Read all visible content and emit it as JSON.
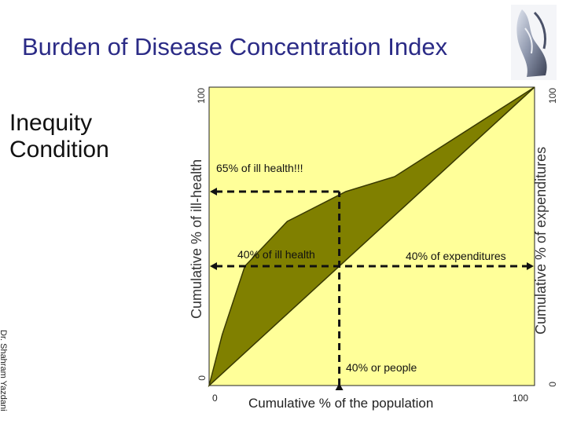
{
  "title": "Burden of Disease Concentration Index",
  "side_heading": [
    "Inequity",
    "Condition"
  ],
  "author": "Dr. Shahram Yazdani",
  "chart": {
    "y_left_label": "Cumulative % of  ill-health",
    "y_right_label": "Cumulative % of  expenditures",
    "x_label": "Cumulative % of  the population",
    "y_left_ticks": [
      "100",
      "0"
    ],
    "y_right_ticks": [
      "100",
      "0"
    ],
    "x_ticks": [
      "0",
      "100"
    ]
  },
  "annotations": {
    "ill_65": "65% of ill health!!!",
    "ill_40": "40% of ill health",
    "exp_40": "40% of expenditures",
    "people_40": "40% or people"
  },
  "colors": {
    "title": "#2b2b86",
    "panel_fill": "#ffff99",
    "curve_fill": "#808000",
    "curve_stroke": "#3a3a00"
  },
  "icons": [
    "praying-hands-image"
  ],
  "chart_data": {
    "type": "area",
    "xlabel": "Cumulative % of  the population",
    "ylabel": "Cumulative % of  ill-health",
    "ylabel_right": "Cumulative % of  expenditures",
    "xlim": [
      0,
      100
    ],
    "ylim": [
      0,
      100
    ],
    "series": [
      {
        "name": "",
        "x": [
          0,
          4,
          11,
          24,
          42,
          57,
          100
        ],
        "y": [
          0,
          17,
          40,
          55,
          65,
          70,
          100
        ]
      }
    ]
  }
}
